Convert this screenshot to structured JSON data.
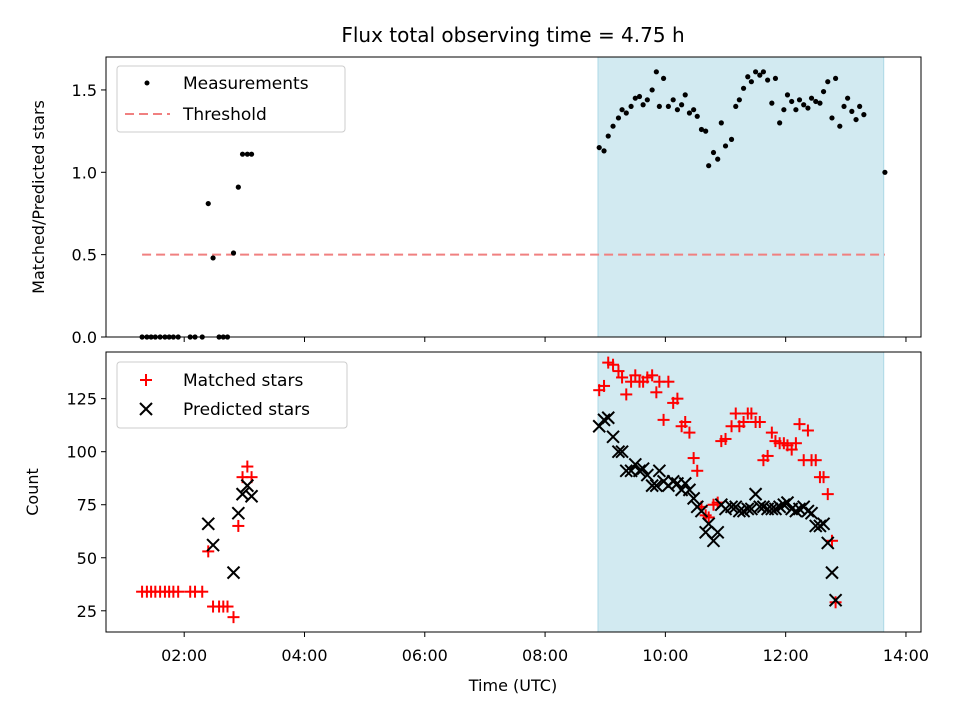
{
  "title": "Flux total observing time = 4.75 h",
  "shared_x": {
    "label": "Time (UTC)",
    "unit": "hours",
    "range": [
      0.7,
      14.25
    ],
    "ticks": [
      {
        "v": 2,
        "label": "02:00"
      },
      {
        "v": 4,
        "label": "04:00"
      },
      {
        "v": 6,
        "label": "06:00"
      },
      {
        "v": 8,
        "label": "08:00"
      },
      {
        "v": 10,
        "label": "10:00"
      },
      {
        "v": 12,
        "label": "12:00"
      },
      {
        "v": 14,
        "label": "14:00"
      }
    ]
  },
  "shaded_span": {
    "x": [
      8.88,
      13.63
    ],
    "color": "#add8e6"
  },
  "colors": {
    "measurements": "#000000",
    "threshold": "#f08080",
    "matched": "#ff0000",
    "predicted": "#000000"
  },
  "chart_data": [
    {
      "type": "scatter",
      "ylabel": "Matched/Predicted stars",
      "ylim": [
        0,
        1.7
      ],
      "yticks": [
        0.0,
        0.5,
        1.0,
        1.5
      ],
      "ytick_labels": [
        "0.0",
        "0.5",
        "1.0",
        "1.5"
      ],
      "legend": {
        "placement": "upper-left",
        "entries": [
          "Measurements",
          "Threshold"
        ]
      },
      "threshold": {
        "name": "Threshold",
        "y": 0.5,
        "x": [
          1.3,
          13.65
        ],
        "style": "dashed"
      },
      "series": [
        {
          "name": "Measurements",
          "marker": "dot",
          "points": [
            [
              1.3,
              0
            ],
            [
              1.38,
              0
            ],
            [
              1.45,
              0
            ],
            [
              1.52,
              0
            ],
            [
              1.6,
              0
            ],
            [
              1.68,
              0
            ],
            [
              1.75,
              0
            ],
            [
              1.82,
              0
            ],
            [
              1.9,
              0
            ],
            [
              2.1,
              0
            ],
            [
              2.18,
              0
            ],
            [
              2.3,
              0
            ],
            [
              2.4,
              0.81
            ],
            [
              2.48,
              0.48
            ],
            [
              2.58,
              0
            ],
            [
              2.65,
              0
            ],
            [
              2.72,
              0
            ],
            [
              2.82,
              0.51
            ],
            [
              2.9,
              0.91
            ],
            [
              2.97,
              1.11
            ],
            [
              3.05,
              1.11
            ],
            [
              3.12,
              1.11
            ],
            [
              8.9,
              1.15
            ],
            [
              8.98,
              1.13
            ],
            [
              9.05,
              1.22
            ],
            [
              9.13,
              1.28
            ],
            [
              9.22,
              1.33
            ],
            [
              9.28,
              1.38
            ],
            [
              9.35,
              1.36
            ],
            [
              9.43,
              1.4
            ],
            [
              9.5,
              1.45
            ],
            [
              9.57,
              1.46
            ],
            [
              9.63,
              1.41
            ],
            [
              9.7,
              1.44
            ],
            [
              9.78,
              1.5
            ],
            [
              9.85,
              1.61
            ],
            [
              9.9,
              1.4
            ],
            [
              9.97,
              1.57
            ],
            [
              10.05,
              1.4
            ],
            [
              10.13,
              1.44
            ],
            [
              10.2,
              1.38
            ],
            [
              10.27,
              1.41
            ],
            [
              10.33,
              1.47
            ],
            [
              10.4,
              1.36
            ],
            [
              10.47,
              1.38
            ],
            [
              10.53,
              1.34
            ],
            [
              10.6,
              1.26
            ],
            [
              10.67,
              1.25
            ],
            [
              10.72,
              1.04
            ],
            [
              10.8,
              1.12
            ],
            [
              10.87,
              1.08
            ],
            [
              10.93,
              1.3
            ],
            [
              11.0,
              1.16
            ],
            [
              11.1,
              1.2
            ],
            [
              11.17,
              1.4
            ],
            [
              11.23,
              1.44
            ],
            [
              11.3,
              1.51
            ],
            [
              11.37,
              1.58
            ],
            [
              11.43,
              1.55
            ],
            [
              11.5,
              1.61
            ],
            [
              11.57,
              1.59
            ],
            [
              11.63,
              1.61
            ],
            [
              11.7,
              1.56
            ],
            [
              11.77,
              1.42
            ],
            [
              11.83,
              1.57
            ],
            [
              11.9,
              1.3
            ],
            [
              11.97,
              1.38
            ],
            [
              12.03,
              1.47
            ],
            [
              12.1,
              1.43
            ],
            [
              12.17,
              1.38
            ],
            [
              12.23,
              1.44
            ],
            [
              12.3,
              1.41
            ],
            [
              12.37,
              1.39
            ],
            [
              12.43,
              1.45
            ],
            [
              12.5,
              1.43
            ],
            [
              12.57,
              1.42
            ],
            [
              12.63,
              1.49
            ],
            [
              12.7,
              1.55
            ],
            [
              12.77,
              1.33
            ],
            [
              12.83,
              1.57
            ],
            [
              12.9,
              1.28
            ],
            [
              12.97,
              1.4
            ],
            [
              13.03,
              1.45
            ],
            [
              13.1,
              1.37
            ],
            [
              13.17,
              1.32
            ],
            [
              13.23,
              1.4
            ],
            [
              13.3,
              1.35
            ],
            [
              13.65,
              1.0
            ]
          ]
        }
      ]
    },
    {
      "type": "scatter",
      "ylabel": "Count",
      "ylim": [
        15,
        147
      ],
      "yticks": [
        25,
        50,
        75,
        100,
        125
      ],
      "ytick_labels": [
        "25",
        "50",
        "75",
        "100",
        "125"
      ],
      "legend": {
        "placement": "upper-left",
        "entries": [
          "Matched stars",
          "Predicted stars"
        ]
      },
      "series": [
        {
          "name": "Matched stars",
          "marker": "plus",
          "points": [
            [
              1.3,
              34
            ],
            [
              1.38,
              34
            ],
            [
              1.45,
              34
            ],
            [
              1.52,
              34
            ],
            [
              1.6,
              34
            ],
            [
              1.68,
              34
            ],
            [
              1.75,
              34
            ],
            [
              1.82,
              34
            ],
            [
              1.9,
              34
            ],
            [
              2.1,
              34
            ],
            [
              2.18,
              34
            ],
            [
              2.3,
              34
            ],
            [
              2.4,
              53
            ],
            [
              2.48,
              27
            ],
            [
              2.58,
              27
            ],
            [
              2.65,
              27
            ],
            [
              2.72,
              27
            ],
            [
              2.82,
              22
            ],
            [
              2.9,
              65
            ],
            [
              2.97,
              88
            ],
            [
              3.05,
              93
            ],
            [
              3.12,
              88
            ],
            [
              8.9,
              129
            ],
            [
              8.98,
              131
            ],
            [
              9.05,
              142
            ],
            [
              9.13,
              141
            ],
            [
              9.22,
              138
            ],
            [
              9.28,
              135
            ],
            [
              9.35,
              127
            ],
            [
              9.43,
              133
            ],
            [
              9.5,
              136
            ],
            [
              9.57,
              133
            ],
            [
              9.63,
              133
            ],
            [
              9.7,
              135
            ],
            [
              9.78,
              136
            ],
            [
              9.85,
              128
            ],
            [
              9.9,
              133
            ],
            [
              9.97,
              115
            ],
            [
              10.05,
              133
            ],
            [
              10.13,
              123
            ],
            [
              10.2,
              125
            ],
            [
              10.27,
              112
            ],
            [
              10.33,
              114
            ],
            [
              10.4,
              109
            ],
            [
              10.47,
              97
            ],
            [
              10.53,
              91
            ],
            [
              10.6,
              74
            ],
            [
              10.67,
              70
            ],
            [
              10.72,
              69
            ],
            [
              10.8,
              75
            ],
            [
              10.87,
              76
            ],
            [
              10.93,
              105
            ],
            [
              11.0,
              106
            ],
            [
              11.1,
              112
            ],
            [
              11.17,
              118
            ],
            [
              11.23,
              112
            ],
            [
              11.3,
              114
            ],
            [
              11.37,
              118
            ],
            [
              11.43,
              118
            ],
            [
              11.5,
              114
            ],
            [
              11.57,
              114
            ],
            [
              11.63,
              96
            ],
            [
              11.7,
              98
            ],
            [
              11.77,
              109
            ],
            [
              11.83,
              105
            ],
            [
              11.9,
              104
            ],
            [
              11.97,
              104
            ],
            [
              12.03,
              103
            ],
            [
              12.1,
              101
            ],
            [
              12.17,
              104
            ],
            [
              12.23,
              113
            ],
            [
              12.3,
              96
            ],
            [
              12.37,
              110
            ],
            [
              12.43,
              96
            ],
            [
              12.5,
              96
            ],
            [
              12.57,
              88
            ],
            [
              12.63,
              88
            ],
            [
              12.7,
              80
            ],
            [
              12.77,
              58
            ],
            [
              12.83,
              29
            ]
          ]
        },
        {
          "name": "Predicted stars",
          "marker": "x",
          "points": [
            [
              2.4,
              66
            ],
            [
              2.48,
              56
            ],
            [
              2.82,
              43
            ],
            [
              2.9,
              71
            ],
            [
              2.97,
              80
            ],
            [
              3.05,
              84
            ],
            [
              3.12,
              79
            ],
            [
              8.9,
              112
            ],
            [
              8.98,
              115
            ],
            [
              9.05,
              116
            ],
            [
              9.13,
              107
            ],
            [
              9.22,
              100
            ],
            [
              9.28,
              100
            ],
            [
              9.35,
              91
            ],
            [
              9.43,
              91
            ],
            [
              9.5,
              94
            ],
            [
              9.57,
              91
            ],
            [
              9.63,
              92
            ],
            [
              9.7,
              89
            ],
            [
              9.78,
              84
            ],
            [
              9.85,
              84
            ],
            [
              9.9,
              91
            ],
            [
              9.97,
              86
            ],
            [
              10.05,
              84
            ],
            [
              10.13,
              86
            ],
            [
              10.2,
              85
            ],
            [
              10.27,
              82
            ],
            [
              10.33,
              85
            ],
            [
              10.4,
              82
            ],
            [
              10.47,
              78
            ],
            [
              10.53,
              74
            ],
            [
              10.6,
              72
            ],
            [
              10.67,
              62
            ],
            [
              10.72,
              66
            ],
            [
              10.8,
              58
            ],
            [
              10.87,
              62
            ],
            [
              10.93,
              75
            ],
            [
              11.0,
              73
            ],
            [
              11.1,
              74
            ],
            [
              11.17,
              74
            ],
            [
              11.23,
              72
            ],
            [
              11.3,
              72
            ],
            [
              11.37,
              73
            ],
            [
              11.43,
              73
            ],
            [
              11.5,
              80
            ],
            [
              11.57,
              74
            ],
            [
              11.63,
              74
            ],
            [
              11.7,
              73
            ],
            [
              11.77,
              73
            ],
            [
              11.83,
              73
            ],
            [
              11.9,
              74
            ],
            [
              11.97,
              75
            ],
            [
              12.03,
              76
            ],
            [
              12.1,
              73
            ],
            [
              12.17,
              72
            ],
            [
              12.23,
              73
            ],
            [
              12.3,
              74
            ],
            [
              12.37,
              72
            ],
            [
              12.43,
              71
            ],
            [
              12.5,
              65
            ],
            [
              12.57,
              65
            ],
            [
              12.63,
              66
            ],
            [
              12.7,
              57
            ],
            [
              12.77,
              43
            ],
            [
              12.83,
              30
            ]
          ]
        }
      ]
    }
  ]
}
